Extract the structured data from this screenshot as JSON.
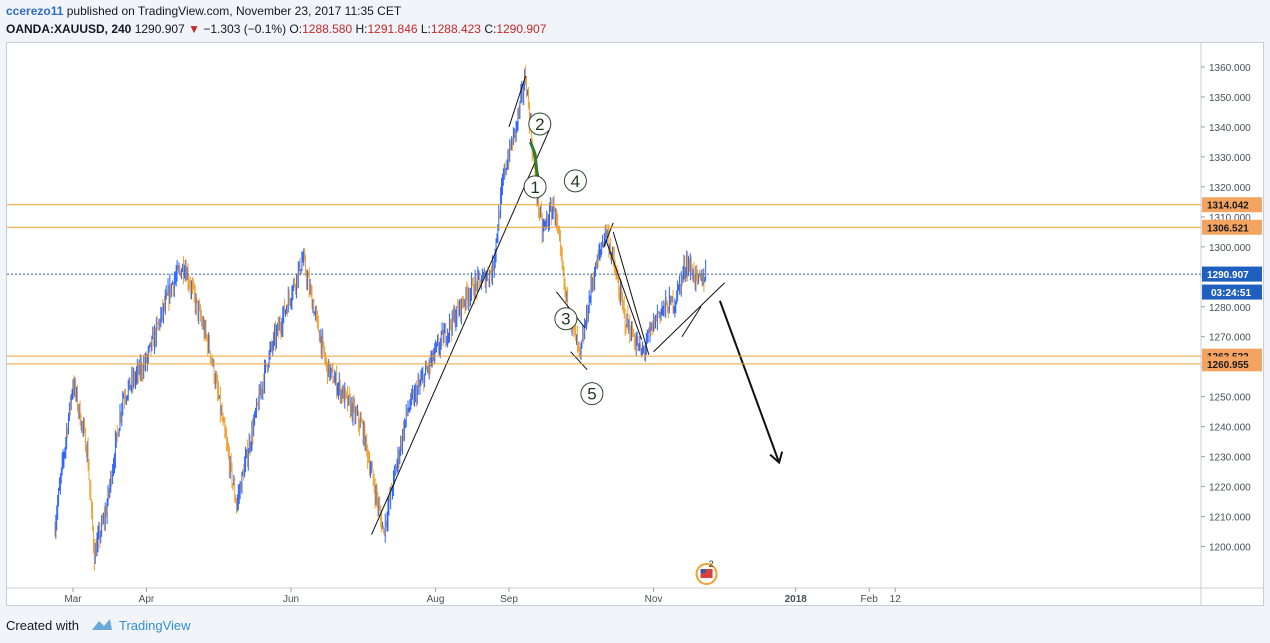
{
  "header": {
    "author": "ccerezo11",
    "published_text": "published on TradingView.com, November 23, 2017 11:35 CET",
    "symbol": "OANDA:XAUUSD, 240",
    "last": "1290.907",
    "change_arrow": "▼",
    "change": "−1.303 (−0.1%)",
    "o_label": "O:",
    "o_value": "1288.580",
    "h_label": "H:",
    "h_value": "1291.846",
    "l_label": "L:",
    "l_value": "1288.423",
    "c_label": "C:",
    "c_value": "1290.907"
  },
  "footer": {
    "created_with": "Created with",
    "brand": "TradingView"
  },
  "colors": {
    "up": "#2962ff",
    "down": "#f0a030",
    "level_line": "#f0a030",
    "level_box": "#f4a460",
    "price_box": "#1f5fbf",
    "wave_highlight": "#2e7d32"
  },
  "chart_data": {
    "type": "candlestick",
    "symbol": "OANDA:XAUUSD",
    "timeframe": "240",
    "ylim": [
      1192,
      1367
    ],
    "y_ticks": [
      "1200.000",
      "1210.000",
      "1220.000",
      "1230.000",
      "1240.000",
      "1250.000",
      "1260.000",
      "1270.000",
      "1280.000",
      "1290.000",
      "1300.000",
      "1310.000",
      "1320.000",
      "1330.000",
      "1340.000",
      "1350.000",
      "1360.000"
    ],
    "x_labels": [
      "Mar",
      "Apr",
      "Jun",
      "Aug",
      "Sep",
      "Nov",
      "2018",
      "Feb",
      "12"
    ],
    "price_path": [
      {
        "t": "Feb 21",
        "p": 1205
      },
      {
        "t": "Mar 1",
        "p": 1255
      },
      {
        "t": "Mar 7",
        "p": 1232
      },
      {
        "t": "Mar 10",
        "p": 1197
      },
      {
        "t": "Mar 15",
        "p": 1212
      },
      {
        "t": "Mar 22",
        "p": 1250
      },
      {
        "t": "Apr 1",
        "p": 1262
      },
      {
        "t": "Apr 12",
        "p": 1288
      },
      {
        "t": "Apr 17",
        "p": 1294
      },
      {
        "t": "Apr 28",
        "p": 1265
      },
      {
        "t": "May 9",
        "p": 1214
      },
      {
        "t": "May 22",
        "p": 1262
      },
      {
        "t": "Jun 6",
        "p": 1296
      },
      {
        "t": "Jun 16",
        "p": 1260
      },
      {
        "t": "Jul 1",
        "p": 1240
      },
      {
        "t": "Jul 10",
        "p": 1205
      },
      {
        "t": "Jul 20",
        "p": 1245
      },
      {
        "t": "Aug 3",
        "p": 1268
      },
      {
        "t": "Aug 15",
        "p": 1285
      },
      {
        "t": "Aug 25",
        "p": 1292
      },
      {
        "t": "Aug 30",
        "p": 1325
      },
      {
        "t": "Sep 4",
        "p": 1340
      },
      {
        "t": "Sep 8",
        "p": 1357
      },
      {
        "t": "Sep 12",
        "p": 1323
      },
      {
        "t": "Sep 15",
        "p": 1305
      },
      {
        "t": "Sep 20",
        "p": 1314
      },
      {
        "t": "Sep 25",
        "p": 1283
      },
      {
        "t": "Oct 1",
        "p": 1263
      },
      {
        "t": "Oct 6",
        "p": 1288
      },
      {
        "t": "Oct 12",
        "p": 1306
      },
      {
        "t": "Oct 20",
        "p": 1276
      },
      {
        "t": "Oct 27",
        "p": 1264
      },
      {
        "t": "Nov 3",
        "p": 1278
      },
      {
        "t": "Nov 10",
        "p": 1282
      },
      {
        "t": "Nov 15",
        "p": 1295
      },
      {
        "t": "Nov 20",
        "p": 1288
      },
      {
        "t": "Nov 23",
        "p": 1290.907
      }
    ],
    "levels": [
      {
        "value": 1314.042,
        "label": "1314.042",
        "style": "orange"
      },
      {
        "value": 1306.521,
        "label": "1306.521",
        "style": "orange"
      },
      {
        "value": 1290.907,
        "label": "1290.907",
        "style": "current"
      },
      {
        "value": 1263.522,
        "label": "1263.522",
        "style": "orange"
      },
      {
        "value": 1260.955,
        "label": "1260.955",
        "style": "orange"
      }
    ],
    "countdown": "03:24:51",
    "wave_labels": [
      "1",
      "2",
      "3",
      "4",
      "5"
    ],
    "currency_badge": "2"
  }
}
